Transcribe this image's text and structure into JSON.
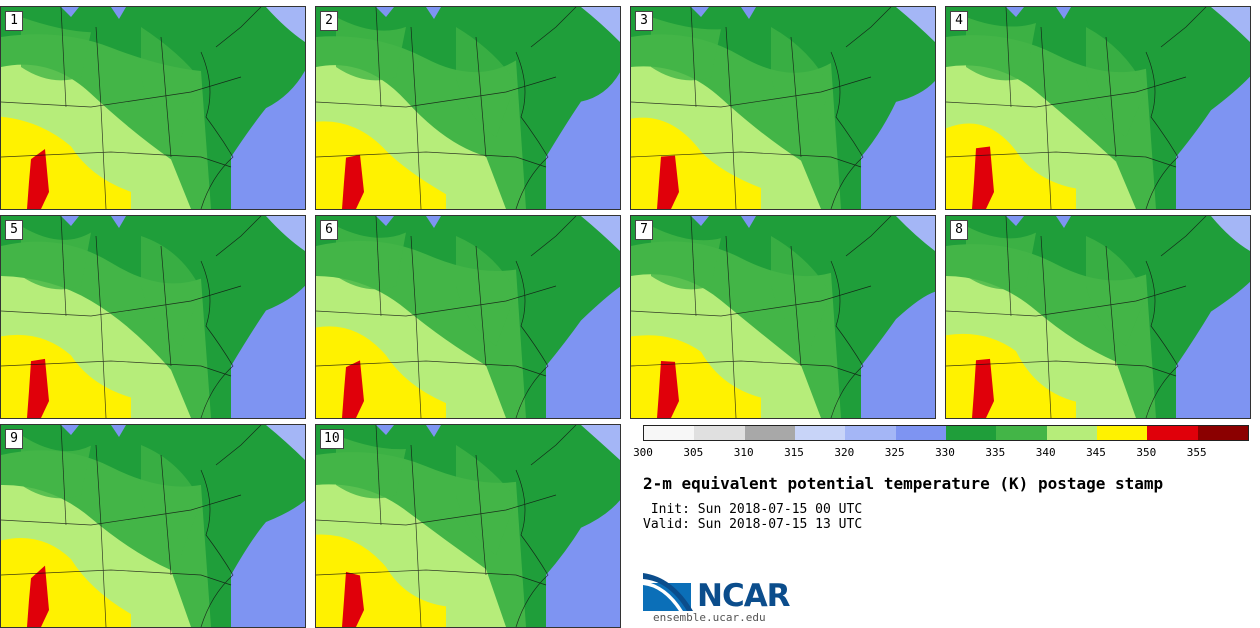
{
  "panels": [
    {
      "label": "1"
    },
    {
      "label": "2"
    },
    {
      "label": "3"
    },
    {
      "label": "4"
    },
    {
      "label": "5"
    },
    {
      "label": "6"
    },
    {
      "label": "7"
    },
    {
      "label": "8"
    },
    {
      "label": "9"
    },
    {
      "label": "10"
    }
  ],
  "colorbar": {
    "colors": [
      "#f7f7f7",
      "#e0e0e0",
      "#a8a8a8",
      "#c8d4f8",
      "#a4b6f6",
      "#7e94f2",
      "#1f9e3a",
      "#43b547",
      "#b6ed7a",
      "#fff200",
      "#e0000a",
      "#8b0000"
    ],
    "ticks": [
      "300",
      "305",
      "310",
      "315",
      "320",
      "325",
      "330",
      "335",
      "340",
      "345",
      "350",
      "355"
    ]
  },
  "title": "2-m equivalent potential temperature (K) postage stamp",
  "init_line": " Init: Sun 2018-07-15 00 UTC",
  "valid_line": "Valid: Sun 2018-07-15 13 UTC",
  "logo": {
    "name": "NCAR",
    "url": "ensemble.ucar.edu"
  }
}
